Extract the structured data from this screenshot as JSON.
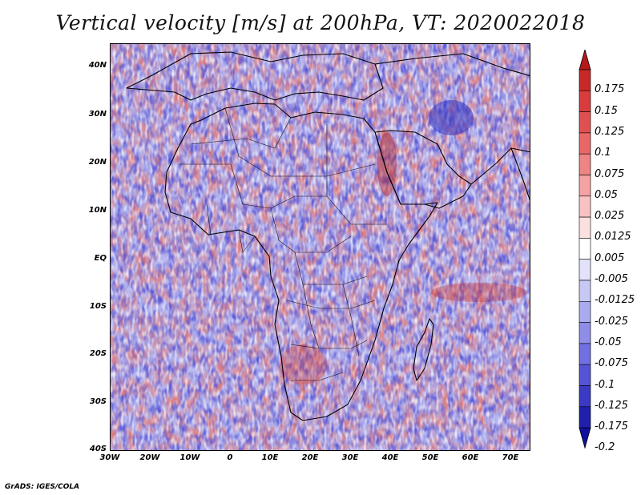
{
  "title": "Vertical velocity [m/s] at 200hPa, VT: 2020022018",
  "footer": "GrADS: IGES/COLA",
  "map": {
    "region": "Africa",
    "lon_range": [
      -30,
      75
    ],
    "lat_range": [
      -40,
      45
    ],
    "lat_labels": [
      "40N",
      "30N",
      "20N",
      "10N",
      "EQ",
      "10S",
      "20S",
      "30S",
      "40S"
    ],
    "lon_labels": [
      "30W",
      "20W",
      "10W",
      "0",
      "10E",
      "20E",
      "30E",
      "40E",
      "50E",
      "60E",
      "70E"
    ],
    "colors": {
      "background_positive": "#e8a4a4",
      "background_negative": "#a8a8ee",
      "coastline": "#000000"
    }
  },
  "colorbar": {
    "labels": [
      "0.175",
      "0.15",
      "0.125",
      "0.1",
      "0.075",
      "0.05",
      "0.025",
      "0.0125",
      "0.005",
      "-0.005",
      "-0.0125",
      "-0.025",
      "-0.05",
      "-0.075",
      "-0.1",
      "-0.125",
      "-0.175",
      "-0.2"
    ],
    "colors": [
      "#b41a1a",
      "#c82828",
      "#d83c3c",
      "#e05050",
      "#e86868",
      "#ee8484",
      "#f4a2a2",
      "#f8c2c2",
      "#fbe0e0",
      "#ffffff",
      "#e2e2fa",
      "#c8c8f4",
      "#aaaaee",
      "#8e8ee8",
      "#7070e0",
      "#5454d4",
      "#3a3ac4",
      "#2020ac",
      "#1010a0"
    ]
  }
}
